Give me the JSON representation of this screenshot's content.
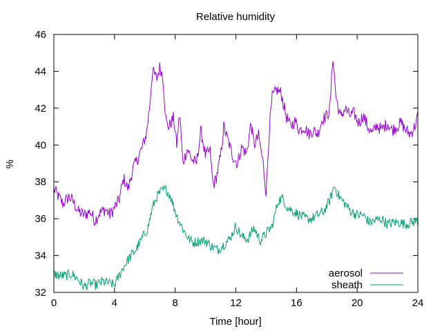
{
  "chart_data": {
    "type": "line",
    "title": "Relative humidity",
    "xlabel": "Time [hour]",
    "ylabel": "%",
    "xlim": [
      0,
      24
    ],
    "ylim": [
      32,
      46
    ],
    "xticks": [
      0,
      4,
      8,
      12,
      16,
      20,
      24
    ],
    "yticks": [
      32,
      34,
      36,
      38,
      40,
      42,
      44,
      46
    ],
    "grid": false,
    "legend_position": "bottom-right",
    "series": [
      {
        "name": "aerosol",
        "color": "#9400d3",
        "noise": 0.35,
        "points": [
          [
            0,
            37.6
          ],
          [
            0.3,
            37.2
          ],
          [
            0.6,
            36.8
          ],
          [
            1.0,
            37.2
          ],
          [
            1.3,
            36.9
          ],
          [
            1.6,
            36.4
          ],
          [
            2.0,
            36.2
          ],
          [
            2.4,
            36.4
          ],
          [
            2.7,
            35.9
          ],
          [
            3.0,
            36.3
          ],
          [
            3.4,
            36.5
          ],
          [
            3.7,
            36.2
          ],
          [
            4.0,
            36.6
          ],
          [
            4.3,
            37.0
          ],
          [
            4.6,
            38.2
          ],
          [
            4.9,
            37.6
          ],
          [
            5.2,
            38.7
          ],
          [
            5.5,
            39.2
          ],
          [
            5.8,
            39.8
          ],
          [
            6.1,
            40.6
          ],
          [
            6.3,
            42.0
          ],
          [
            6.5,
            44.0
          ],
          [
            6.8,
            43.6
          ],
          [
            7.0,
            44.3
          ],
          [
            7.2,
            43.6
          ],
          [
            7.4,
            41.2
          ],
          [
            7.6,
            41.0
          ],
          [
            7.9,
            41.5
          ],
          [
            8.1,
            40.0
          ],
          [
            8.3,
            41.8
          ],
          [
            8.5,
            39.0
          ],
          [
            8.8,
            39.8
          ],
          [
            9.1,
            39.2
          ],
          [
            9.4,
            39.0
          ],
          [
            9.7,
            40.8
          ],
          [
            10.0,
            39.4
          ],
          [
            10.3,
            39.7
          ],
          [
            10.5,
            37.8
          ],
          [
            10.7,
            38.2
          ],
          [
            11.0,
            39.4
          ],
          [
            11.2,
            41.0
          ],
          [
            11.5,
            40.2
          ],
          [
            11.8,
            39.4
          ],
          [
            12.1,
            39.0
          ],
          [
            12.4,
            39.9
          ],
          [
            12.7,
            39.5
          ],
          [
            13.0,
            41.2
          ],
          [
            13.2,
            40.0
          ],
          [
            13.5,
            40.5
          ],
          [
            13.8,
            39.0
          ],
          [
            14.0,
            37.4
          ],
          [
            14.2,
            40.8
          ],
          [
            14.4,
            42.6
          ],
          [
            14.7,
            43.0
          ],
          [
            15.0,
            42.8
          ],
          [
            15.3,
            41.6
          ],
          [
            15.6,
            41.0
          ],
          [
            15.9,
            41.3
          ],
          [
            16.2,
            40.8
          ],
          [
            16.5,
            41.0
          ],
          [
            16.8,
            40.6
          ],
          [
            17.1,
            40.8
          ],
          [
            17.4,
            40.6
          ],
          [
            17.7,
            41.4
          ],
          [
            18.0,
            41.6
          ],
          [
            18.2,
            41.9
          ],
          [
            18.4,
            44.9
          ],
          [
            18.6,
            42.6
          ],
          [
            18.9,
            41.5
          ],
          [
            19.2,
            42.0
          ],
          [
            19.5,
            41.6
          ],
          [
            19.8,
            41.7
          ],
          [
            20.1,
            41.2
          ],
          [
            20.4,
            41.6
          ],
          [
            20.7,
            41.0
          ],
          [
            21.0,
            40.6
          ],
          [
            21.3,
            41.1
          ],
          [
            21.6,
            40.8
          ],
          [
            22.0,
            41.2
          ],
          [
            22.3,
            40.8
          ],
          [
            22.6,
            41.0
          ],
          [
            22.9,
            41.2
          ],
          [
            23.2,
            40.8
          ],
          [
            23.5,
            40.6
          ],
          [
            23.8,
            41.0
          ],
          [
            24.0,
            41.6
          ]
        ]
      },
      {
        "name": "sheath",
        "color": "#009e73",
        "noise": 0.28,
        "points": [
          [
            0,
            33.0
          ],
          [
            0.4,
            32.9
          ],
          [
            0.8,
            32.9
          ],
          [
            1.2,
            33.0
          ],
          [
            1.6,
            32.7
          ],
          [
            2.0,
            32.3
          ],
          [
            2.4,
            32.5
          ],
          [
            2.8,
            32.4
          ],
          [
            3.2,
            32.6
          ],
          [
            3.6,
            32.5
          ],
          [
            4.0,
            32.4
          ],
          [
            4.3,
            32.9
          ],
          [
            4.6,
            33.4
          ],
          [
            5.0,
            33.9
          ],
          [
            5.4,
            34.3
          ],
          [
            5.8,
            34.9
          ],
          [
            6.2,
            35.5
          ],
          [
            6.5,
            36.6
          ],
          [
            6.8,
            37.2
          ],
          [
            7.1,
            37.5
          ],
          [
            7.4,
            37.6
          ],
          [
            7.7,
            37.2
          ],
          [
            8.0,
            36.4
          ],
          [
            8.3,
            35.8
          ],
          [
            8.6,
            35.3
          ],
          [
            8.9,
            34.9
          ],
          [
            9.2,
            34.7
          ],
          [
            9.6,
            34.8
          ],
          [
            10.0,
            34.8
          ],
          [
            10.4,
            34.5
          ],
          [
            10.8,
            34.3
          ],
          [
            11.2,
            34.6
          ],
          [
            11.6,
            34.9
          ],
          [
            12.0,
            35.6
          ],
          [
            12.4,
            35.0
          ],
          [
            12.8,
            34.9
          ],
          [
            13.2,
            35.5
          ],
          [
            13.6,
            34.8
          ],
          [
            14.0,
            35.2
          ],
          [
            14.4,
            35.6
          ],
          [
            14.8,
            37.0
          ],
          [
            15.1,
            37.1
          ],
          [
            15.4,
            36.6
          ],
          [
            15.8,
            36.4
          ],
          [
            16.2,
            36.2
          ],
          [
            16.6,
            36.0
          ],
          [
            17.0,
            36.0
          ],
          [
            17.4,
            36.2
          ],
          [
            17.8,
            36.4
          ],
          [
            18.2,
            37.0
          ],
          [
            18.5,
            37.8
          ],
          [
            18.8,
            37.2
          ],
          [
            19.2,
            36.8
          ],
          [
            19.6,
            36.4
          ],
          [
            20.0,
            36.2
          ],
          [
            20.4,
            36.2
          ],
          [
            20.8,
            35.8
          ],
          [
            21.2,
            35.9
          ],
          [
            21.6,
            36.0
          ],
          [
            22.0,
            35.7
          ],
          [
            22.4,
            35.8
          ],
          [
            22.8,
            35.8
          ],
          [
            23.2,
            35.7
          ],
          [
            23.6,
            35.8
          ],
          [
            24.0,
            35.9
          ]
        ]
      }
    ]
  }
}
